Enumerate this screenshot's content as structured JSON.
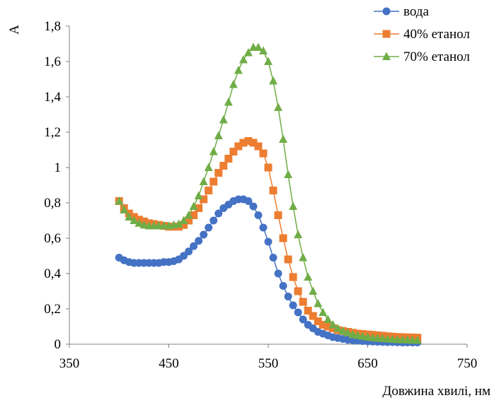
{
  "chart_data": {
    "type": "scatter",
    "title": "",
    "xlabel": "Довжина хвилі, нм",
    "ylabel": "А",
    "xlim": [
      350,
      750
    ],
    "ylim": [
      0,
      1.8
    ],
    "x_ticks": [
      "350",
      "450",
      "550",
      "650",
      "750"
    ],
    "y_ticks": [
      "0",
      "0,2",
      "0,4",
      "0,6",
      "0,8",
      "1",
      "1,2",
      "1,4",
      "1,6",
      "1,8"
    ],
    "grid": false,
    "legend_position": "top-right",
    "x": [
      400,
      405,
      410,
      415,
      420,
      425,
      430,
      435,
      440,
      445,
      450,
      455,
      460,
      465,
      470,
      475,
      480,
      485,
      490,
      495,
      500,
      505,
      510,
      515,
      520,
      525,
      530,
      535,
      540,
      545,
      550,
      555,
      560,
      565,
      570,
      575,
      580,
      585,
      590,
      595,
      600,
      605,
      610,
      615,
      620,
      625,
      630,
      635,
      640,
      645,
      650,
      655,
      660,
      665,
      670,
      675,
      680,
      685,
      690,
      695,
      700
    ],
    "series": [
      {
        "name": "вода",
        "color": "#4472C4",
        "marker": "circle",
        "values": [
          0.49,
          0.475,
          0.465,
          0.46,
          0.46,
          0.46,
          0.46,
          0.46,
          0.46,
          0.465,
          0.465,
          0.47,
          0.48,
          0.5,
          0.525,
          0.555,
          0.585,
          0.62,
          0.66,
          0.7,
          0.74,
          0.77,
          0.79,
          0.81,
          0.82,
          0.82,
          0.81,
          0.78,
          0.73,
          0.66,
          0.58,
          0.49,
          0.4,
          0.33,
          0.27,
          0.22,
          0.18,
          0.14,
          0.11,
          0.09,
          0.07,
          0.06,
          0.05,
          0.04,
          0.035,
          0.03,
          0.025,
          0.022,
          0.02,
          0.018,
          0.016,
          0.015,
          0.014,
          0.013,
          0.012,
          0.012,
          0.011,
          0.01,
          0.01,
          0.01,
          0.01
        ]
      },
      {
        "name": "40% етанол",
        "color": "#ED7D31",
        "marker": "square",
        "values": [
          0.81,
          0.77,
          0.74,
          0.72,
          0.705,
          0.695,
          0.685,
          0.68,
          0.675,
          0.67,
          0.665,
          0.665,
          0.665,
          0.675,
          0.7,
          0.73,
          0.77,
          0.82,
          0.87,
          0.92,
          0.97,
          1.01,
          1.05,
          1.09,
          1.12,
          1.14,
          1.15,
          1.14,
          1.12,
          1.08,
          1.0,
          0.87,
          0.73,
          0.6,
          0.48,
          0.38,
          0.3,
          0.24,
          0.19,
          0.16,
          0.13,
          0.11,
          0.1,
          0.09,
          0.08,
          0.075,
          0.07,
          0.065,
          0.06,
          0.058,
          0.055,
          0.053,
          0.05,
          0.048,
          0.045,
          0.043,
          0.041,
          0.04,
          0.039,
          0.038,
          0.037
        ]
      },
      {
        "name": "70% етанол",
        "color": "#70AD47",
        "marker": "triangle",
        "values": [
          0.81,
          0.76,
          0.72,
          0.7,
          0.685,
          0.675,
          0.67,
          0.67,
          0.67,
          0.67,
          0.67,
          0.675,
          0.68,
          0.7,
          0.73,
          0.78,
          0.84,
          0.92,
          1.0,
          1.09,
          1.18,
          1.27,
          1.37,
          1.47,
          1.55,
          1.61,
          1.65,
          1.68,
          1.68,
          1.66,
          1.6,
          1.49,
          1.34,
          1.16,
          0.96,
          0.78,
          0.62,
          0.49,
          0.38,
          0.3,
          0.23,
          0.18,
          0.14,
          0.11,
          0.09,
          0.075,
          0.065,
          0.055,
          0.05,
          0.045,
          0.04,
          0.037,
          0.034,
          0.032,
          0.03,
          0.028,
          0.026,
          0.025,
          0.024,
          0.023,
          0.022
        ]
      }
    ]
  }
}
